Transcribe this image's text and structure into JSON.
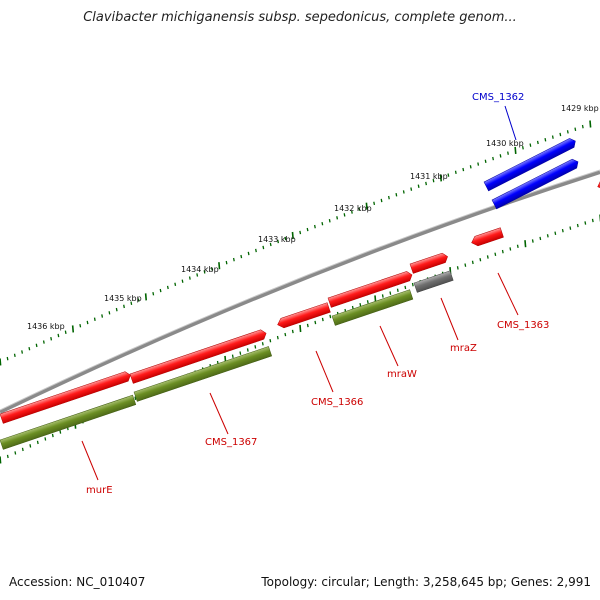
{
  "title": "Clavibacter michiganensis subsp. sepedonicus, complete genom...",
  "footer": {
    "accession": "Accession: NC_010407",
    "summary": "Topology: circular; Length: 3,258,645 bp; Genes: 2,991"
  },
  "colors": {
    "forward_cds": "#ff0000",
    "reverse_cds": "#6b8e23",
    "highlight": "#0000ff",
    "pseudo": "#696969",
    "backbone": "#808080",
    "ticks": "#006400",
    "label_red": "#cc0000",
    "label_blue": "#0000cc"
  },
  "ruler": {
    "labels": [
      "1429 kbp",
      "1430 kbp",
      "1431 kbp",
      "1432 kbp",
      "1433 kbp",
      "1434 kbp",
      "1435 kbp",
      "1436 kbp"
    ]
  },
  "gene_labels": [
    {
      "name": "CMS_1362",
      "color": "blue"
    },
    {
      "name": "CMS_1363",
      "color": "red"
    },
    {
      "name": "mraZ",
      "color": "red"
    },
    {
      "name": "mraW",
      "color": "red"
    },
    {
      "name": "CMS_1366",
      "color": "red"
    },
    {
      "name": "CMS_1367",
      "color": "red"
    },
    {
      "name": "murE",
      "color": "red"
    }
  ]
}
